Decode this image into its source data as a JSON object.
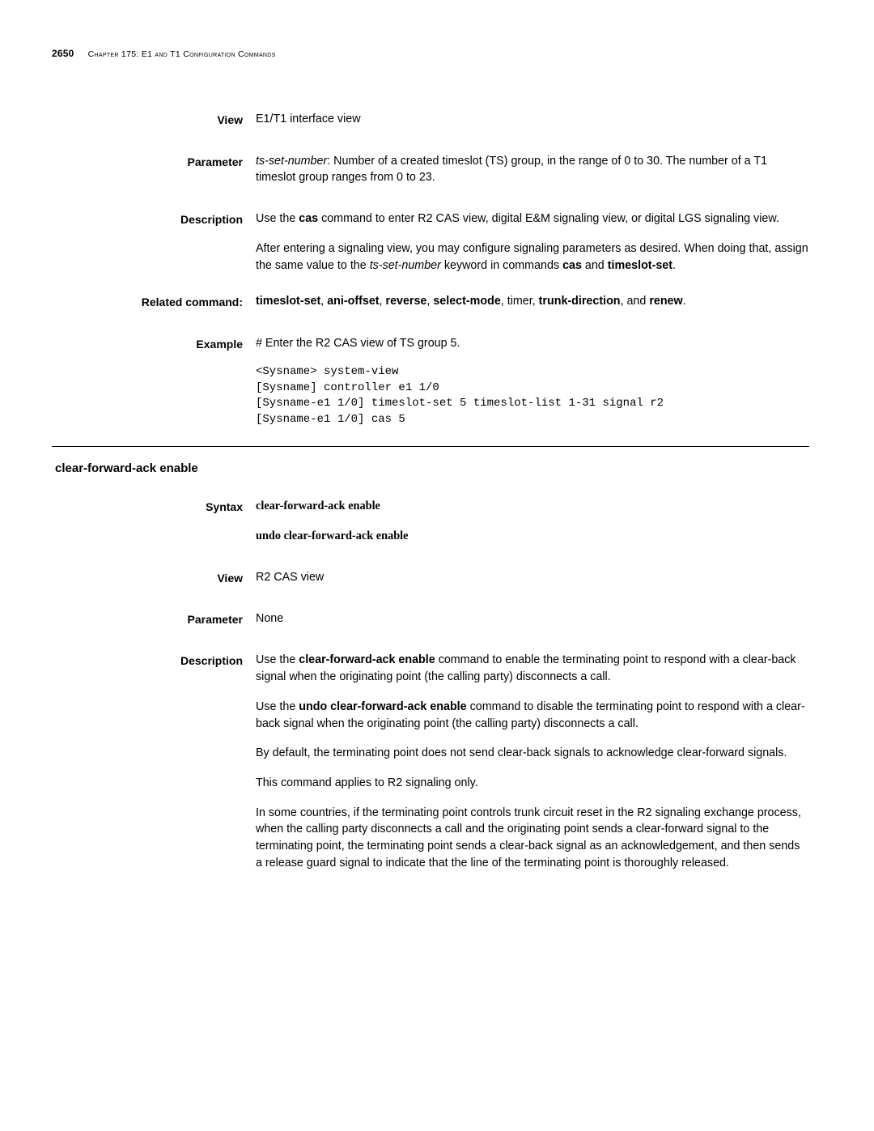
{
  "header": {
    "page_number": "2650",
    "chapter_label": "Chapter 175: E1 and T1 Configuration Commands"
  },
  "section1": {
    "view_label": "View",
    "view_text": "E1/T1 interface view",
    "parameter_label": "Parameter",
    "parameter_prefix_italic": "ts-set-number",
    "parameter_body": ": Number of a created timeslot (TS) group, in the range of 0 to 30. The number of a T1 timeslot group ranges from 0 to 23.",
    "description_label": "Description",
    "desc_p1_a": "Use the ",
    "desc_p1_b_bold": "cas",
    "desc_p1_c": " command to enter R2 CAS view, digital E&M signaling view, or digital LGS signaling view.",
    "desc_p2_a": "After entering a signaling view, you may configure signaling parameters as desired. When doing that, assign the same value to the ",
    "desc_p2_b_italic": "ts-set-number",
    "desc_p2_c": " keyword in commands ",
    "desc_p2_d_bold": "cas",
    "desc_p2_e": " and ",
    "desc_p2_f_bold": "timeslot-set",
    "desc_p2_g": ".",
    "related_label": "Related command:",
    "rel_b1": "timeslot-set",
    "rel_s1": ", ",
    "rel_b2": "ani-offset",
    "rel_s2": ", ",
    "rel_b3": "reverse",
    "rel_s3": ", ",
    "rel_b4": "select-mode",
    "rel_s4": ", timer, ",
    "rel_b5": "trunk-direction",
    "rel_s5": ", and ",
    "rel_b6": "renew",
    "rel_s6": ".",
    "example_label": "Example",
    "example_intro": "# Enter the R2 CAS view of TS group 5.",
    "example_code": "<Sysname> system-view\n[Sysname] controller e1 1/0\n[Sysname-e1 1/0] timeslot-set 5 timeslot-list 1-31 signal r2\n[Sysname-e1 1/0] cas 5"
  },
  "section2": {
    "title": "clear-forward-ack enable",
    "syntax_label": "Syntax",
    "syntax_line1": "clear-forward-ack enable",
    "syntax_line2": "undo clear-forward-ack enable",
    "view_label": "View",
    "view_text": "R2 CAS view",
    "parameter_label": "Parameter",
    "parameter_text": "None",
    "description_label": "Description",
    "d1_a": "Use the ",
    "d1_b_bold": "clear-forward-ack enable",
    "d1_c": " command to enable the terminating point to respond with a clear-back signal when the originating point (the calling party) disconnects a call.",
    "d2_a": "Use the ",
    "d2_b_bold": "undo clear-forward-ack enable",
    "d2_c": " command to disable the terminating point to respond with a clear-back signal when the originating point (the calling party) disconnects a call.",
    "d3": "By default, the terminating point does not send clear-back signals to acknowledge clear-forward signals.",
    "d4": "This command applies to R2 signaling only.",
    "d5": "In some countries, if the terminating point controls trunk circuit reset in the R2 signaling exchange process, when the calling party disconnects a call and the originating point sends a clear-forward signal to the terminating point, the terminating point sends a clear-back signal as an acknowledgement, and then sends a release guard signal to indicate that the line of the terminating point is thoroughly released."
  }
}
